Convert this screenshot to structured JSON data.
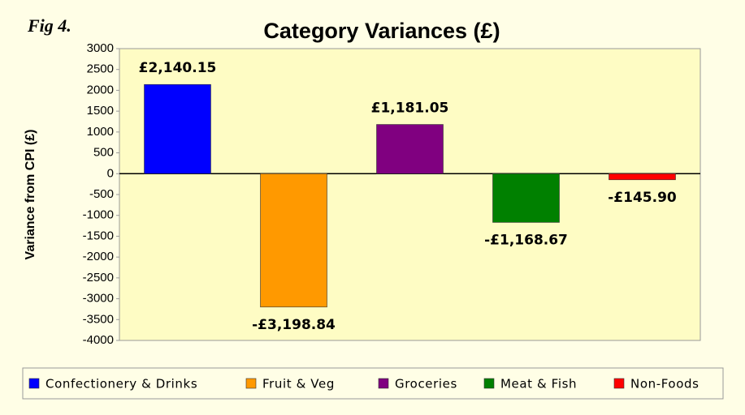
{
  "chart_data": {
    "type": "bar",
    "title": "Category Variances (£)",
    "annotation": "Fig 4.",
    "y_label": "Variance from CPI (£)",
    "series": [
      {
        "name": "Confectionery & Drinks",
        "color": "#0000ff",
        "values": [
          2140.15
        ],
        "value_labels": [
          "£2,140.15"
        ]
      },
      {
        "name": "Fruit & Veg",
        "color": "#ff9900",
        "values": [
          -3198.84
        ],
        "value_labels": [
          "-£3,198.84"
        ]
      },
      {
        "name": "Groceries",
        "color": "#800080",
        "values": [
          1181.05
        ],
        "value_labels": [
          "£1,181.05"
        ]
      },
      {
        "name": "Meat & Fish",
        "color": "#008000",
        "values": [
          -1168.67
        ],
        "value_labels": [
          "-£1,168.67"
        ]
      },
      {
        "name": "Non-Foods",
        "color": "#ff0000",
        "values": [
          -145.9
        ],
        "value_labels": [
          "-£145.90"
        ]
      }
    ],
    "ylim": [
      -4000,
      3000
    ],
    "yticks": [
      3000,
      2500,
      2000,
      1500,
      1000,
      500,
      0,
      -500,
      -1000,
      -1500,
      -2000,
      -2500,
      -3000,
      -3500,
      -4000
    ],
    "legend": "bottom"
  }
}
